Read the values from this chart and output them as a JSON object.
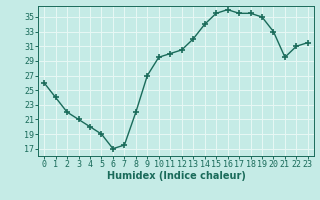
{
  "x": [
    0,
    1,
    2,
    3,
    4,
    5,
    6,
    7,
    8,
    9,
    10,
    11,
    12,
    13,
    14,
    15,
    16,
    17,
    18,
    19,
    20,
    21,
    22,
    23
  ],
  "y": [
    26,
    24,
    22,
    21,
    20,
    19,
    17,
    17.5,
    22,
    27,
    29.5,
    30,
    30.5,
    32,
    34,
    35.5,
    36,
    35.5,
    35.5,
    35,
    33,
    29.5,
    31,
    31.5
  ],
  "line_color": "#1a6b5a",
  "marker": "+",
  "marker_size": 4,
  "marker_lw": 1.2,
  "line_width": 1.0,
  "bg_color": "#c5ebe6",
  "grid_color": "#e8f8f5",
  "xlabel": "Humidex (Indice chaleur)",
  "xlabel_fontsize": 7,
  "tick_fontsize": 6,
  "ylim": [
    16,
    36.5
  ],
  "xlim": [
    -0.5,
    23.5
  ],
  "yticks": [
    17,
    19,
    21,
    23,
    25,
    27,
    29,
    31,
    33,
    35
  ],
  "xticks": [
    0,
    1,
    2,
    3,
    4,
    5,
    6,
    7,
    8,
    9,
    10,
    11,
    12,
    13,
    14,
    15,
    16,
    17,
    18,
    19,
    20,
    21,
    22,
    23
  ]
}
